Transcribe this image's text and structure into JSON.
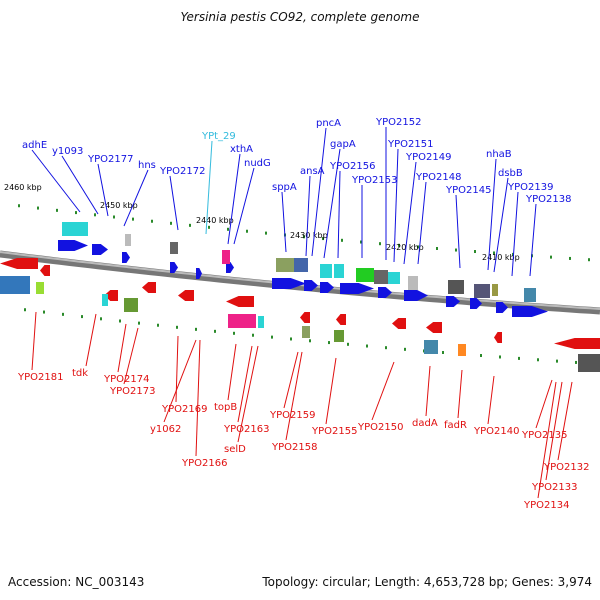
{
  "title": "Yersinia pestis CO92, complete genome",
  "footer": {
    "accession": "Accession: NC_003143",
    "summary": "Topology: circular; Length: 4,653,728 bp; Genes: 3,974"
  },
  "scale_labels": [
    "2460 kbp",
    "2450 kbp",
    "2440 kbp",
    "2430 kbp",
    "2420 kbp",
    "2410 kbp"
  ],
  "top_labels": [
    "adhE",
    "y1093",
    "YPO2177",
    "hns",
    "YPO2172",
    "YPt_29",
    "xthA",
    "nudG",
    "sppA",
    "ansA",
    "pncA",
    "gapA",
    "YPO2156",
    "YPO2153",
    "YPO2152",
    "YPO2151",
    "YPO2149",
    "YPO2148",
    "YPO2145",
    "nhaB",
    "dsbB",
    "YPO2139",
    "YPO2138"
  ],
  "bottom_labels": [
    "YPO2181",
    "tdk",
    "YPO2174",
    "YPO2173",
    "YPO2169",
    "y1062",
    "topB",
    "YPO2166",
    "YPO2163",
    "selD",
    "YPO2159",
    "YPO2158",
    "YPO2155",
    "YPO2150",
    "dadA",
    "fadR",
    "YPO2140",
    "YPO2135",
    "YPO2132",
    "YPO2133",
    "YPO2134"
  ],
  "colors": {
    "forward_gene": "#1212e0",
    "reverse_gene": "#e01010",
    "trna_label": "#33bbdd",
    "backbone": "#888888",
    "tick": "#2a8a2a"
  }
}
